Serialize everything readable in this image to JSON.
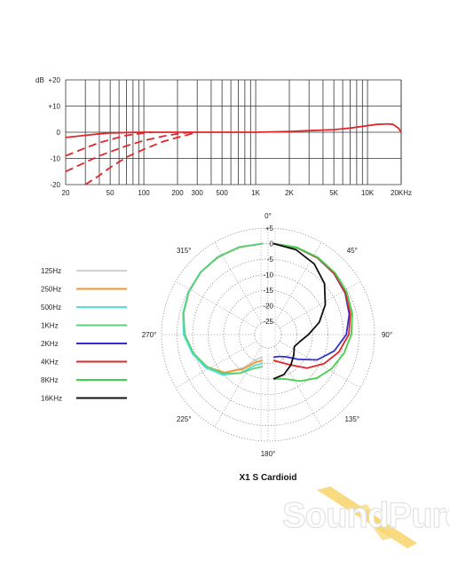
{
  "chart_data": [
    {
      "type": "line",
      "title": "",
      "xlabel": "",
      "ylabel": "dB",
      "x_scale": "log",
      "xlim": [
        20,
        20000
      ],
      "ylim": [
        -20,
        20
      ],
      "grid": true,
      "x_tick_labels": [
        {
          "value": 20,
          "label": "20"
        },
        {
          "value": 50,
          "label": "50"
        },
        {
          "value": 100,
          "label": "100"
        },
        {
          "value": 200,
          "label": "200"
        },
        {
          "value": 300,
          "label": "300"
        },
        {
          "value": 500,
          "label": "500"
        },
        {
          "value": 1000,
          "label": "1K"
        },
        {
          "value": 2000,
          "label": "2K"
        },
        {
          "value": 5000,
          "label": "5K"
        },
        {
          "value": 10000,
          "label": "10K"
        },
        {
          "value": 20000,
          "label": "20KHz"
        }
      ],
      "y_tick_labels": [
        {
          "value": 20,
          "label": "+20"
        },
        {
          "value": 10,
          "label": "+10"
        },
        {
          "value": 0,
          "label": "0"
        },
        {
          "value": -10,
          "label": "-10"
        },
        {
          "value": -20,
          "label": "-20"
        }
      ],
      "y_unit_label": "dB",
      "series": [
        {
          "style": "solid",
          "color": "#e0262b",
          "x": [
            20,
            30,
            40,
            50,
            70,
            100,
            200,
            500,
            1000,
            2000,
            3000,
            5000,
            7000,
            10000,
            12000,
            15000,
            17000,
            19000,
            20000
          ],
          "y": [
            -2,
            -1.2,
            -0.6,
            -0.3,
            -0.1,
            0,
            0,
            0,
            0,
            0.3,
            0.6,
            1.0,
            1.6,
            2.5,
            3.0,
            3.2,
            3.0,
            1.5,
            0
          ]
        },
        {
          "style": "dashed",
          "color": "#e0262b",
          "x": [
            20,
            30,
            40,
            50,
            70,
            100,
            120
          ],
          "y": [
            -9,
            -6,
            -4,
            -2.8,
            -1.2,
            -0.3,
            0
          ]
        },
        {
          "style": "dashed",
          "color": "#e0262b",
          "x": [
            20,
            30,
            40,
            50,
            70,
            100,
            150,
            200,
            250,
            300
          ],
          "y": [
            -15,
            -11.5,
            -9,
            -7.5,
            -5.2,
            -3.2,
            -1.5,
            -0.6,
            -0.1,
            0
          ]
        },
        {
          "style": "dashed",
          "color": "#e0262b",
          "x": [
            30,
            40,
            50,
            70,
            100,
            150,
            200,
            300
          ],
          "y": [
            -20,
            -16.5,
            -13.5,
            -9.5,
            -6.5,
            -3.5,
            -2,
            0
          ]
        }
      ]
    },
    {
      "type": "polar",
      "title": "X1 S  Cardioid",
      "radial_range_db": [
        -25,
        5
      ],
      "radial_tick_labels": [
        "+5",
        "0",
        "-5",
        "-10",
        "-15",
        "-20",
        "-25"
      ],
      "angle_labels": [
        {
          "angle": 0,
          "label": "0°"
        },
        {
          "angle": 45,
          "label": "45°"
        },
        {
          "angle": 90,
          "label": "90°"
        },
        {
          "angle": 135,
          "label": "135°"
        },
        {
          "angle": 180,
          "label": "180°"
        },
        {
          "angle": 225,
          "label": "225°"
        },
        {
          "angle": 270,
          "label": "270°"
        },
        {
          "angle": 315,
          "label": "315°"
        }
      ],
      "series": [
        {
          "name": "125Hz",
          "color": "#d0d0d0",
          "side": "left",
          "angles": [
            0,
            15,
            30,
            45,
            60,
            75,
            90,
            105,
            120,
            135,
            150,
            165,
            180
          ],
          "db": [
            0,
            -0.2,
            -0.5,
            -1,
            -1.8,
            -2.8,
            -4,
            -6,
            -8.5,
            -12,
            -17,
            -21,
            -22
          ]
        },
        {
          "name": "250Hz",
          "color": "#f2962b",
          "side": "left",
          "angles": [
            0,
            15,
            30,
            45,
            60,
            75,
            90,
            105,
            120,
            135,
            150,
            165,
            180
          ],
          "db": [
            0,
            -0.2,
            -0.5,
            -1,
            -1.8,
            -2.8,
            -4,
            -6,
            -8.5,
            -12,
            -16.5,
            -20,
            -21
          ]
        },
        {
          "name": "500Hz",
          "color": "#55e0d7",
          "side": "left",
          "angles": [
            0,
            15,
            30,
            45,
            60,
            75,
            90,
            105,
            120,
            135,
            150,
            165,
            180
          ],
          "db": [
            0,
            -0.1,
            -0.4,
            -0.9,
            -1.7,
            -2.7,
            -3.8,
            -5.8,
            -8,
            -11,
            -15,
            -19,
            -20
          ]
        },
        {
          "name": "1KHz",
          "color": "#5ad178",
          "side": "left",
          "angles": [
            0,
            15,
            30,
            45,
            60,
            75,
            90,
            105,
            120,
            135,
            150,
            165,
            180
          ],
          "db": [
            0,
            -0.1,
            -0.4,
            -1,
            -1.8,
            -2.9,
            -4.2,
            -6.2,
            -8.6,
            -11.5,
            -15,
            -18,
            -19
          ]
        },
        {
          "name": "2KHz",
          "color": "#2f2fd0",
          "side": "right",
          "angles": [
            0,
            15,
            30,
            45,
            60,
            75,
            90,
            105,
            120,
            135,
            150,
            165,
            180
          ],
          "db": [
            0,
            -0.3,
            -0.8,
            -1.6,
            -2.6,
            -4,
            -5.8,
            -9,
            -13,
            -18,
            -21,
            -22,
            -22
          ]
        },
        {
          "name": "4KHz",
          "color": "#e0262b",
          "side": "right",
          "angles": [
            0,
            15,
            30,
            45,
            60,
            75,
            90,
            105,
            120,
            135,
            150,
            165,
            180
          ],
          "db": [
            0,
            -0.3,
            -0.8,
            -1.5,
            -2.5,
            -3.6,
            -5,
            -7.5,
            -10.5,
            -14,
            -18,
            -20,
            -21
          ]
        },
        {
          "name": "8KHz",
          "color": "#3fd04a",
          "side": "right",
          "angles": [
            0,
            15,
            30,
            45,
            60,
            75,
            90,
            105,
            120,
            135,
            150,
            165,
            180
          ],
          "db": [
            0,
            -0.2,
            -0.6,
            -1.2,
            -2,
            -3,
            -4.2,
            -5.8,
            -7.5,
            -9.5,
            -12,
            -14.5,
            -15
          ]
        },
        {
          "name": "16KHz",
          "color": "#111111",
          "side": "right",
          "angles": [
            0,
            15,
            30,
            45,
            60,
            75,
            90,
            105,
            120,
            135,
            150,
            165,
            180
          ],
          "db": [
            0,
            -1,
            -3,
            -6,
            -10,
            -14,
            -18,
            -20.5,
            -21.5,
            -20,
            -18,
            -16,
            -15
          ]
        }
      ],
      "legend": [
        "125Hz",
        "250Hz",
        "500Hz",
        "1KHz",
        "2KHz",
        "4KHz",
        "8KHz",
        "16KHz"
      ],
      "legend_position": "left"
    }
  ],
  "watermark": {
    "text": "SoundPure"
  }
}
